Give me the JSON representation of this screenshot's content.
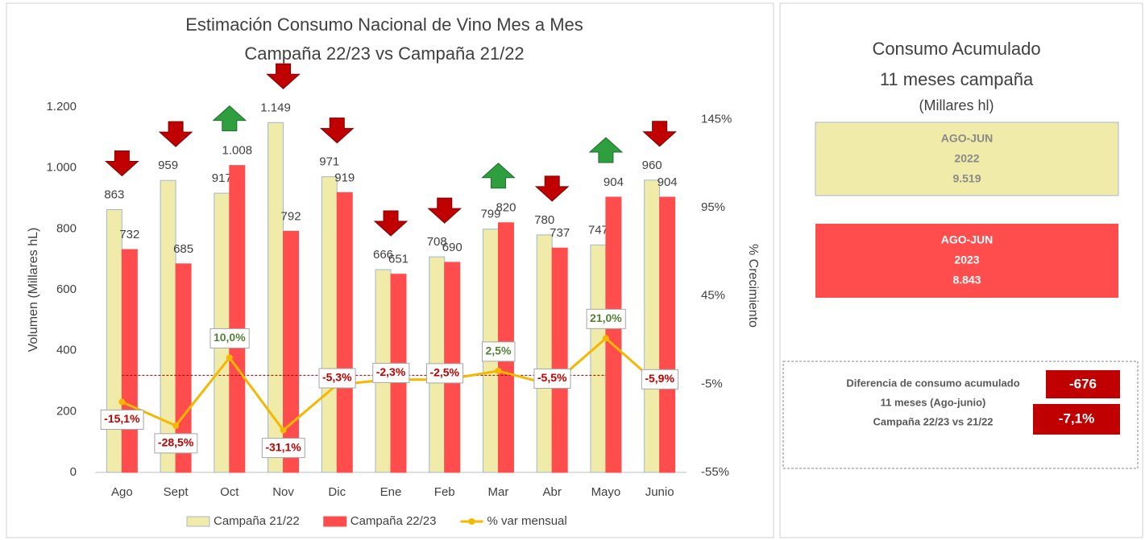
{
  "chart_data": {
    "type": "bar-line",
    "title": "Estimación Consumo Nacional de Vino Mes a Mes",
    "subtitle": "Campaña 22/23 vs Campaña 21/22",
    "y_label": "Volumen (Millares hL)",
    "y2_label": "% Crecimiento",
    "categories": [
      "Ago",
      "Sept",
      "Oct",
      "Nov",
      "Dic",
      "Ene",
      "Feb",
      "Mar",
      "Abr",
      "Mayo",
      "Junio"
    ],
    "series": [
      {
        "name": "Campaña 21/22",
        "type": "bar",
        "color": "#f0eba8",
        "stroke": "#9fb8d0",
        "values": [
          863,
          959,
          917,
          1149,
          971,
          666,
          708,
          799,
          780,
          747,
          960
        ],
        "value_labels": [
          "863",
          "959",
          "917",
          "1.149",
          "971",
          "666",
          "708",
          "799",
          "780",
          "747",
          "960"
        ]
      },
      {
        "name": "Campaña 22/23",
        "type": "bar",
        "color": "#ff4d4d",
        "stroke": "#ff4d4d",
        "values": [
          732,
          685,
          1008,
          792,
          919,
          651,
          690,
          820,
          737,
          904,
          904
        ],
        "value_labels": [
          "732",
          "685",
          "1.008",
          "792",
          "919",
          "651",
          "690",
          "820",
          "737",
          "904",
          "904"
        ]
      },
      {
        "name": "% var mensual",
        "type": "line",
        "axis": "y2",
        "color": "#f5b800",
        "values": [
          -15.1,
          -28.5,
          10.0,
          -31.1,
          -5.3,
          -2.3,
          -2.5,
          2.5,
          -5.5,
          21.0,
          -5.9
        ],
        "value_labels": [
          "-15,1%",
          "-28,5%",
          "10,0%",
          "-31,1%",
          "-5,3%",
          "-2,3%",
          "-2,5%",
          "2,5%",
          "-5,5%",
          "21,0%",
          "-5,9%"
        ]
      }
    ],
    "ylim": [
      0,
      1200
    ],
    "yticks": [
      0,
      200,
      400,
      600,
      800,
      {
        "value": 1000,
        "label": "1.000"
      },
      {
        "value": 1200,
        "label": "1.200"
      }
    ],
    "y2lim": [
      -55,
      152
    ],
    "y2ticks": [
      {
        "value": -55,
        "label": "-55%"
      },
      {
        "value": -5,
        "label": "-5%"
      },
      {
        "value": 45,
        "label": "45%"
      },
      {
        "value": 95,
        "label": "95%"
      },
      {
        "value": 145,
        "label": "145%"
      }
    ],
    "grid": false,
    "legend": "bottom"
  },
  "panel": {
    "title": [
      "Consumo Acumulado",
      "11 meses campaña"
    ],
    "unit": "(Millares hl)",
    "box_2022": [
      "AGO-JUN",
      "2022",
      "9.519"
    ],
    "box_2023": [
      "AGO-JUN",
      "2023",
      "8.843"
    ],
    "diff_text": [
      "Diferencia de consumo acumulado",
      "11 meses (Ago-junio)",
      "Campaña 22/23 vs 21/22"
    ],
    "diff_value": "-676",
    "diff_pct": "-7,1%"
  }
}
